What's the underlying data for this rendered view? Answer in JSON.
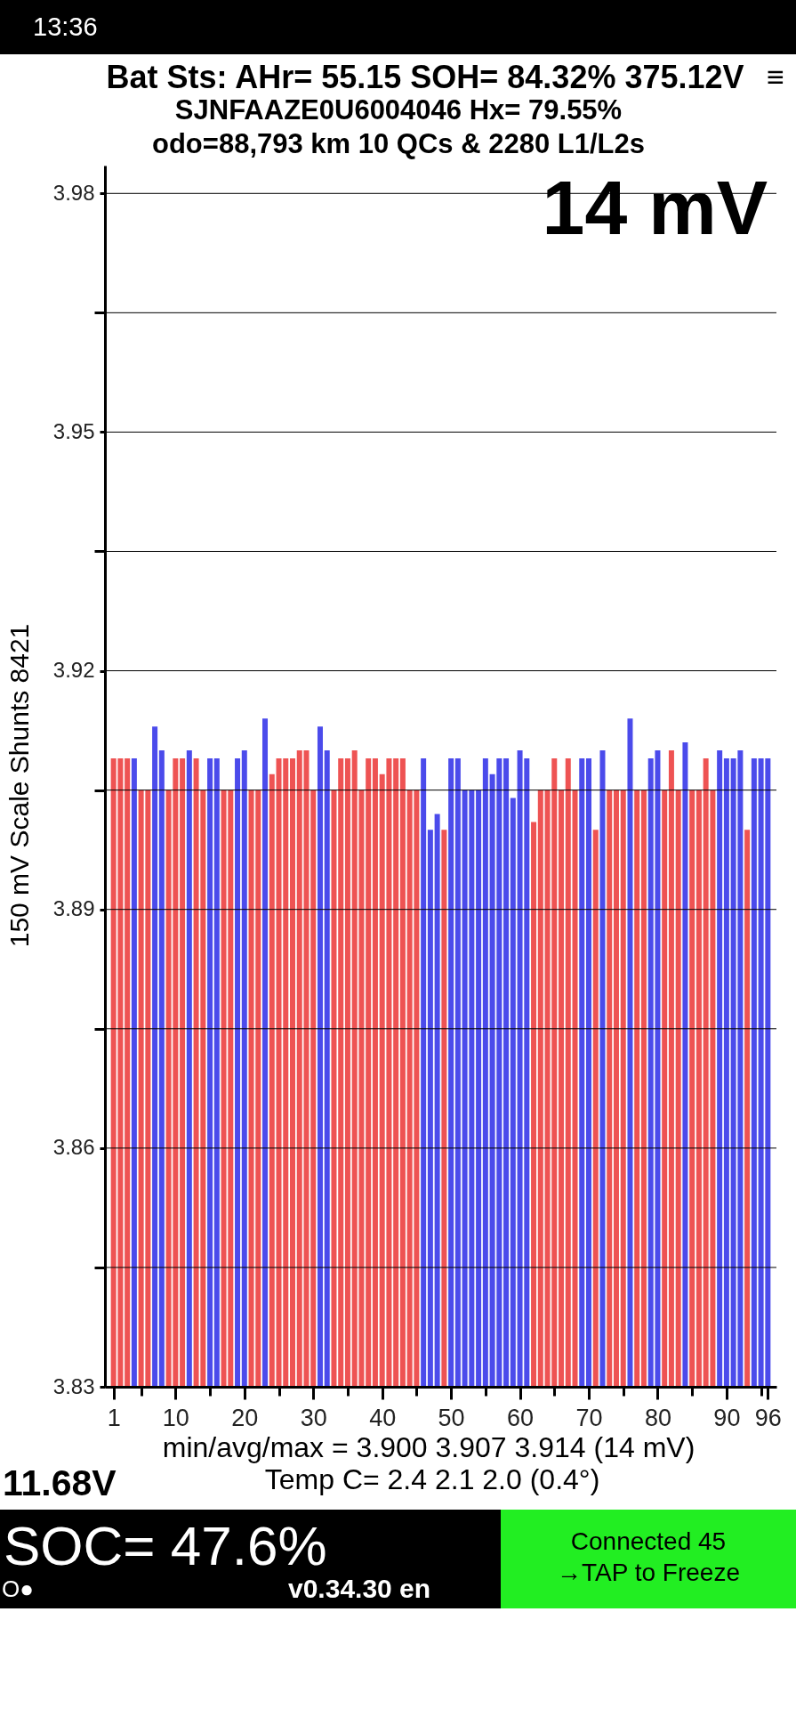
{
  "chart_data": {
    "type": "bar",
    "title": "Bat Sts:  AHr= 55.15  SOH= 84.32%  375.12V",
    "subtitle": "SJNFAAZE0U6004046   Hx= 79.55%\nodo=88,793 km  10 QCs & 2280 L1/L2s",
    "ylabel": "150 mV Scale   Shunts 8421",
    "annotations": [
      "14 mV",
      "min/avg/max = 3.900 3.907 3.914  (14 mV)",
      "Temp C= 2.4  2.1  2.0  (0.4°)",
      "11.68V",
      "SOC= 47.6%",
      "O●",
      "v0.34.30 en",
      "Connected 45",
      "→TAP to Freeze",
      "13:36",
      "≡"
    ],
    "x": [
      1,
      2,
      3,
      4,
      5,
      6,
      7,
      8,
      9,
      10,
      11,
      12,
      13,
      14,
      15,
      16,
      17,
      18,
      19,
      20,
      21,
      22,
      23,
      24,
      25,
      26,
      27,
      28,
      29,
      30,
      31,
      32,
      33,
      34,
      35,
      36,
      37,
      38,
      39,
      40,
      41,
      42,
      43,
      44,
      45,
      46,
      47,
      48,
      49,
      50,
      51,
      52,
      53,
      54,
      55,
      56,
      57,
      58,
      59,
      60,
      61,
      62,
      63,
      64,
      65,
      66,
      67,
      68,
      69,
      70,
      71,
      72,
      73,
      74,
      75,
      76,
      77,
      78,
      79,
      80,
      81,
      82,
      83,
      84,
      85,
      86,
      87,
      88,
      89,
      90,
      91,
      92,
      93,
      94,
      95,
      96
    ],
    "values": [
      3.909,
      3.909,
      3.909,
      3.909,
      3.905,
      3.905,
      3.913,
      3.91,
      3.905,
      3.909,
      3.909,
      3.91,
      3.909,
      3.905,
      3.909,
      3.909,
      3.905,
      3.905,
      3.909,
      3.91,
      3.905,
      3.905,
      3.914,
      3.907,
      3.909,
      3.909,
      3.909,
      3.91,
      3.91,
      3.905,
      3.913,
      3.91,
      3.905,
      3.909,
      3.909,
      3.91,
      3.905,
      3.909,
      3.909,
      3.907,
      3.909,
      3.909,
      3.909,
      3.905,
      3.905,
      3.909,
      3.9,
      3.902,
      3.9,
      3.909,
      3.909,
      3.905,
      3.905,
      3.905,
      3.909,
      3.907,
      3.909,
      3.909,
      3.904,
      3.91,
      3.909,
      3.901,
      3.905,
      3.905,
      3.909,
      3.905,
      3.909,
      3.905,
      3.909,
      3.909,
      3.9,
      3.91,
      3.905,
      3.905,
      3.905,
      3.914,
      3.905,
      3.905,
      3.909,
      3.91,
      3.905,
      3.91,
      3.905,
      3.911,
      3.905,
      3.905,
      3.909,
      3.905,
      3.91,
      3.909,
      3.909,
      3.91,
      3.9,
      3.909,
      3.909,
      3.909
    ],
    "colors": [
      "#ee5353",
      "#ee5353",
      "#ee5353",
      "#4b4beb",
      "#ee5353",
      "#ee5353",
      "#4b4beb",
      "#4b4beb",
      "#ee5353",
      "#ee5353",
      "#ee5353",
      "#4b4beb",
      "#ee5353",
      "#ee5353",
      "#4b4beb",
      "#4b4beb",
      "#ee5353",
      "#ee5353",
      "#4b4beb",
      "#4b4beb",
      "#ee5353",
      "#ee5353",
      "#4b4beb",
      "#ee5353",
      "#ee5353",
      "#ee5353",
      "#ee5353",
      "#ee5353",
      "#ee5353",
      "#ee5353",
      "#4b4beb",
      "#4b4beb",
      "#ee5353",
      "#ee5353",
      "#ee5353",
      "#ee5353",
      "#ee5353",
      "#ee5353",
      "#ee5353",
      "#ee5353",
      "#ee5353",
      "#ee5353",
      "#ee5353",
      "#ee5353",
      "#ee5353",
      "#4b4beb",
      "#4b4beb",
      "#4b4beb",
      "#ee5353",
      "#4b4beb",
      "#4b4beb",
      "#4b4beb",
      "#4b4beb",
      "#4b4beb",
      "#4b4beb",
      "#4b4beb",
      "#4b4beb",
      "#4b4beb",
      "#4b4beb",
      "#4b4beb",
      "#4b4beb",
      "#ee5353",
      "#ee5353",
      "#ee5353",
      "#ee5353",
      "#ee5353",
      "#ee5353",
      "#ee5353",
      "#4b4beb",
      "#4b4beb",
      "#ee5353",
      "#4b4beb",
      "#ee5353",
      "#ee5353",
      "#ee5353",
      "#4b4beb",
      "#ee5353",
      "#ee5353",
      "#4b4beb",
      "#4b4beb",
      "#ee5353",
      "#ee5353",
      "#ee5353",
      "#4b4beb",
      "#ee5353",
      "#ee5353",
      "#ee5353",
      "#ee5353",
      "#4b4beb",
      "#4b4beb",
      "#4b4beb",
      "#4b4beb",
      "#ee5353",
      "#4b4beb",
      "#4b4beb",
      "#4b4beb"
    ],
    "xlim": [
      0.4,
      96.6
    ],
    "xticks": [
      1,
      {
        "value": 5,
        "label": null
      },
      10,
      {
        "value": 15,
        "label": null
      },
      20,
      {
        "value": 25,
        "label": null
      },
      30,
      {
        "value": 35,
        "label": null
      },
      40,
      {
        "value": 45,
        "label": null
      },
      50,
      {
        "value": 55,
        "label": null
      },
      60,
      {
        "value": 65,
        "label": null
      },
      70,
      {
        "value": 75,
        "label": null
      },
      80,
      {
        "value": 85,
        "label": null
      },
      90,
      {
        "value": 95,
        "label": null
      },
      96
    ],
    "ylim": [
      3.83,
      3.9835
    ],
    "yticks": [
      3.83,
      {
        "value": 3.845,
        "label": null
      },
      3.86,
      {
        "value": 3.875,
        "label": null
      },
      3.89,
      {
        "value": 3.905,
        "label": null
      },
      3.92,
      {
        "value": 3.935,
        "label": null
      },
      3.95,
      {
        "value": 3.965,
        "label": null
      },
      3.98
    ],
    "grid": "y"
  }
}
